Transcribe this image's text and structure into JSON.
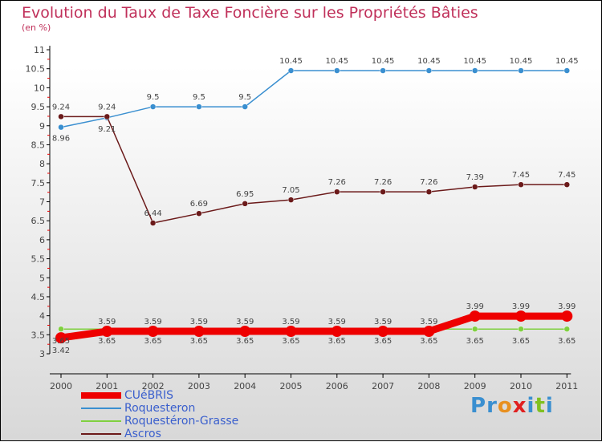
{
  "chart_data": {
    "type": "line",
    "title": "Evolution du Taux de Taxe Foncière sur les Propriétés Bâties",
    "ylabel": "(en %)",
    "x": [
      "2000",
      "2001",
      "2002",
      "2003",
      "2004",
      "2005",
      "2006",
      "2007",
      "2008",
      "2009",
      "2010",
      "2011"
    ],
    "ylim": [
      3,
      11
    ],
    "yticks": [
      "3",
      "3.5",
      "4",
      "4.5",
      "5",
      "5.5",
      "6",
      "6.5",
      "7",
      "7.5",
      "8",
      "8.5",
      "9",
      "9.5",
      "10",
      "10.5",
      "11"
    ],
    "series": [
      {
        "name": "CUéBRIS",
        "color": "#ee0000",
        "values": [
          3.42,
          3.59,
          3.59,
          3.59,
          3.59,
          3.59,
          3.59,
          3.59,
          3.59,
          3.99,
          3.99,
          3.99
        ]
      },
      {
        "name": "Roquesteron",
        "color": "#3a8fd0",
        "values": [
          8.96,
          9.21,
          9.5,
          9.5,
          9.5,
          10.45,
          10.45,
          10.45,
          10.45,
          10.45,
          10.45,
          10.45
        ]
      },
      {
        "name": "Roquestéron-Grasse",
        "color": "#80d040",
        "values": [
          3.65,
          3.65,
          3.65,
          3.65,
          3.65,
          3.65,
          3.65,
          3.65,
          3.65,
          3.65,
          3.65,
          3.65
        ]
      },
      {
        "name": "Ascros",
        "color": "#6b1a1a",
        "values": [
          9.24,
          9.24,
          6.44,
          6.69,
          6.95,
          7.05,
          7.26,
          7.26,
          7.26,
          7.39,
          7.45,
          7.45
        ]
      }
    ],
    "legend": "bottom-left"
  },
  "logo": "Proxiti"
}
